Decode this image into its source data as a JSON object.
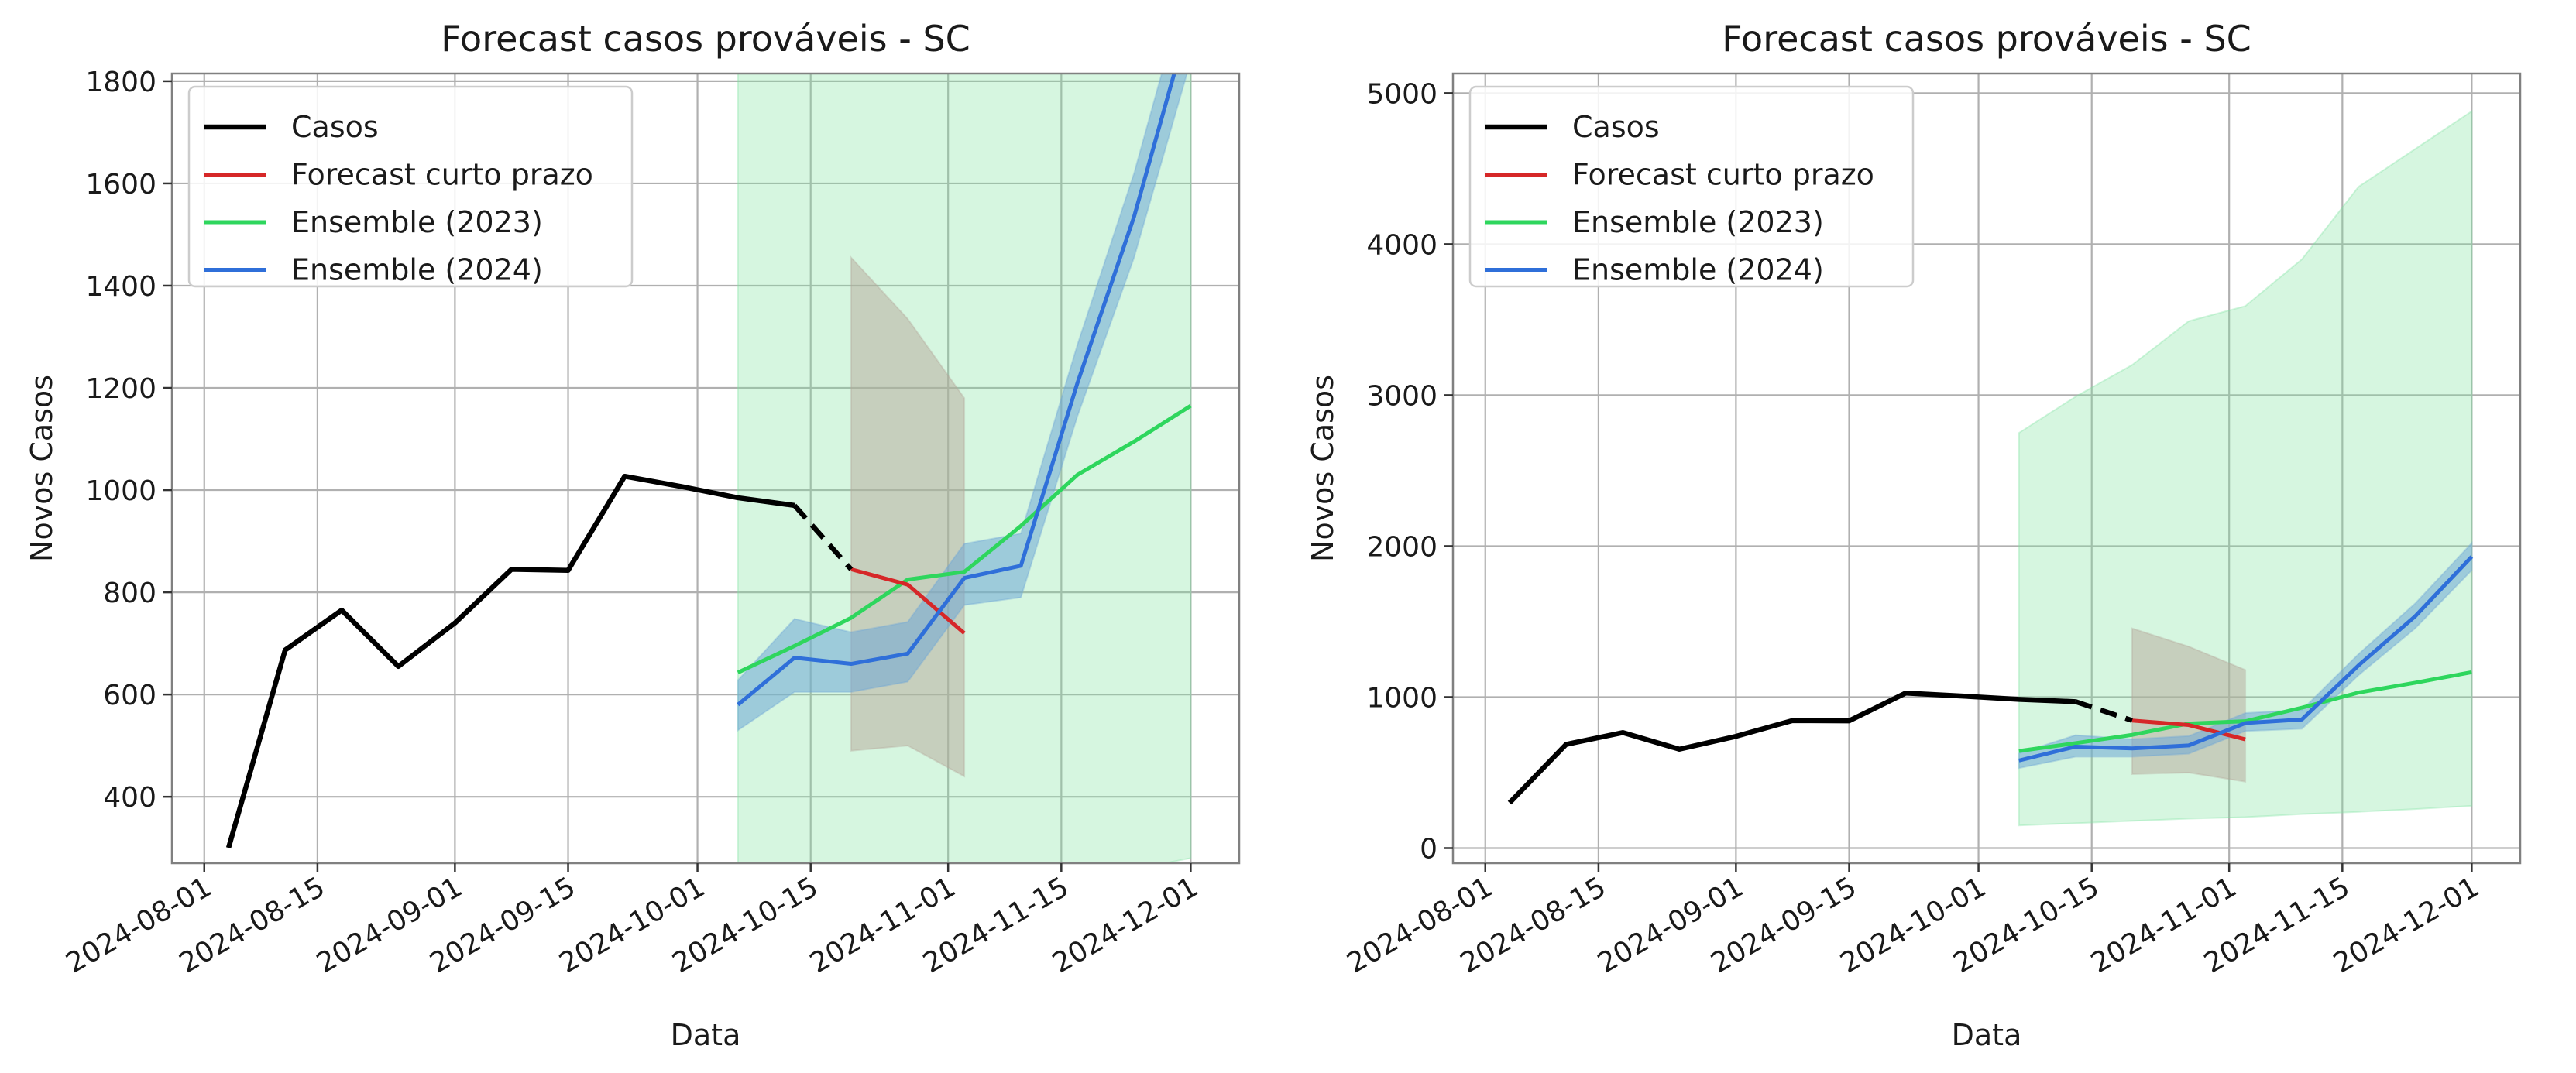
{
  "colors": {
    "casos": "#000000",
    "curto": "#d62728",
    "e2023": "#2ed65d",
    "e2024": "#2f6fd9",
    "band2023": "#7fe3a0",
    "bandcurto": "#b5a79a",
    "band2024": "#6fa7d6",
    "grid": "#b0b0b0"
  },
  "chart_data": [
    {
      "type": "line",
      "title": "Forecast casos prováveis - SC",
      "xlabel": "Data",
      "ylabel": "Novos Casos",
      "xlim": [
        "2024-07-28",
        "2024-12-07"
      ],
      "ylim": [
        270,
        1815
      ],
      "xticks": [
        "2024-08-01",
        "2024-08-15",
        "2024-09-01",
        "2024-09-15",
        "2024-10-01",
        "2024-10-15",
        "2024-11-01",
        "2024-11-15",
        "2024-12-01"
      ],
      "yticks": [
        400,
        600,
        800,
        1000,
        1200,
        1400,
        1600,
        1800
      ],
      "grid": true,
      "legend_position": "upper-left",
      "legend": [
        "Casos",
        "Forecast curto prazo",
        "Ensemble (2023)",
        "Ensemble (2024)"
      ],
      "series": [
        {
          "name": "Casos",
          "x": [
            "2024-08-04",
            "2024-08-11",
            "2024-08-18",
            "2024-08-25",
            "2024-09-01",
            "2024-09-08",
            "2024-09-15",
            "2024-09-22",
            "2024-09-29",
            "2024-10-06",
            "2024-10-13"
          ],
          "y": [
            300,
            687,
            765,
            655,
            740,
            845,
            843,
            1027,
            1007,
            985,
            970
          ]
        },
        {
          "name": "Casos (dashed link)",
          "x": [
            "2024-10-13",
            "2024-10-20"
          ],
          "y": [
            970,
            845
          ]
        },
        {
          "name": "Forecast curto prazo",
          "x": [
            "2024-10-20",
            "2024-10-27",
            "2024-11-03"
          ],
          "y": [
            845,
            815,
            720
          ],
          "lower": [
            490,
            500,
            440
          ],
          "upper": [
            1455,
            1335,
            1180
          ]
        },
        {
          "name": "Ensemble (2023)",
          "x": [
            "2024-10-06",
            "2024-10-13",
            "2024-10-20",
            "2024-10-27",
            "2024-11-03",
            "2024-11-10",
            "2024-11-17",
            "2024-11-24",
            "2024-12-01"
          ],
          "y": [
            643,
            695,
            750,
            825,
            840,
            930,
            1030,
            1095,
            1165
          ],
          "lower": [
            150,
            165,
            180,
            195,
            205,
            225,
            240,
            258,
            280
          ],
          "upper": [
            2750,
            2990,
            3200,
            3490,
            3590,
            3900,
            4380,
            4630,
            4880
          ]
        },
        {
          "name": "Ensemble (2024)",
          "x": [
            "2024-10-06",
            "2024-10-13",
            "2024-10-20",
            "2024-10-27",
            "2024-11-03",
            "2024-11-10",
            "2024-11-17",
            "2024-11-24",
            "2024-12-01"
          ],
          "y": [
            580,
            672,
            660,
            680,
            828,
            852,
            1210,
            1535,
            1930
          ],
          "lower": [
            530,
            605,
            605,
            625,
            775,
            790,
            1145,
            1455,
            1840
          ],
          "upper": [
            628,
            748,
            722,
            742,
            895,
            915,
            1285,
            1620,
            2020
          ]
        }
      ]
    },
    {
      "type": "line",
      "title": "Forecast casos prováveis - SC",
      "xlabel": "Data",
      "ylabel": "Novos Casos",
      "xlim": [
        "2024-07-28",
        "2024-12-07"
      ],
      "ylim": [
        -100,
        5130
      ],
      "xticks": [
        "2024-08-01",
        "2024-08-15",
        "2024-09-01",
        "2024-09-15",
        "2024-10-01",
        "2024-10-15",
        "2024-11-01",
        "2024-11-15",
        "2024-12-01"
      ],
      "yticks": [
        0,
        1000,
        2000,
        3000,
        4000,
        5000
      ],
      "grid": true,
      "legend_position": "upper-left",
      "legend": [
        "Casos",
        "Forecast curto prazo",
        "Ensemble (2023)",
        "Ensemble (2024)"
      ],
      "series": [
        {
          "name": "Casos",
          "x": [
            "2024-08-04",
            "2024-08-11",
            "2024-08-18",
            "2024-08-25",
            "2024-09-01",
            "2024-09-08",
            "2024-09-15",
            "2024-09-22",
            "2024-09-29",
            "2024-10-06",
            "2024-10-13"
          ],
          "y": [
            300,
            687,
            765,
            655,
            740,
            845,
            843,
            1027,
            1007,
            985,
            970
          ]
        },
        {
          "name": "Casos (dashed link)",
          "x": [
            "2024-10-13",
            "2024-10-20"
          ],
          "y": [
            970,
            845
          ]
        },
        {
          "name": "Forecast curto prazo",
          "x": [
            "2024-10-20",
            "2024-10-27",
            "2024-11-03"
          ],
          "y": [
            845,
            815,
            720
          ],
          "lower": [
            490,
            500,
            440
          ],
          "upper": [
            1455,
            1335,
            1180
          ]
        },
        {
          "name": "Ensemble (2023)",
          "x": [
            "2024-10-06",
            "2024-10-13",
            "2024-10-20",
            "2024-10-27",
            "2024-11-03",
            "2024-11-10",
            "2024-11-17",
            "2024-11-24",
            "2024-12-01"
          ],
          "y": [
            643,
            695,
            750,
            825,
            840,
            930,
            1030,
            1095,
            1165
          ],
          "lower": [
            150,
            165,
            180,
            195,
            205,
            225,
            240,
            258,
            280
          ],
          "upper": [
            2750,
            2990,
            3200,
            3490,
            3590,
            3900,
            4380,
            4630,
            4880
          ]
        },
        {
          "name": "Ensemble (2024)",
          "x": [
            "2024-10-06",
            "2024-10-13",
            "2024-10-20",
            "2024-10-27",
            "2024-11-03",
            "2024-11-10",
            "2024-11-17",
            "2024-11-24",
            "2024-12-01"
          ],
          "y": [
            580,
            672,
            660,
            680,
            828,
            852,
            1210,
            1535,
            1930
          ],
          "lower": [
            530,
            605,
            605,
            625,
            775,
            790,
            1145,
            1455,
            1840
          ],
          "upper": [
            628,
            748,
            722,
            742,
            895,
            915,
            1285,
            1620,
            2020
          ]
        }
      ]
    }
  ]
}
